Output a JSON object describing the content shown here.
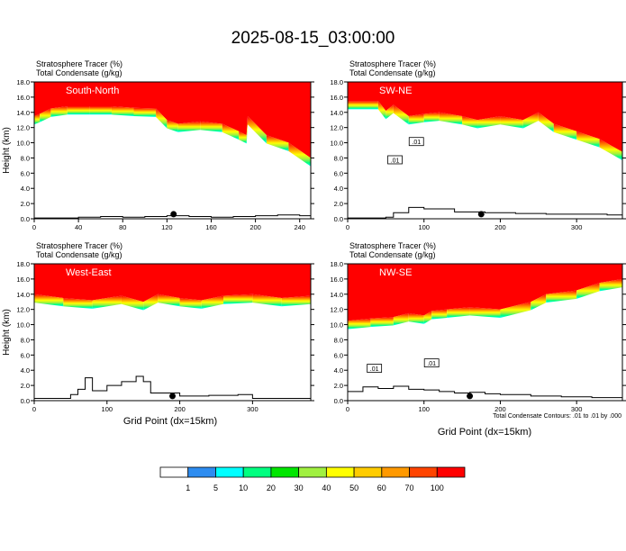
{
  "title": "2025-08-15_03:00:00",
  "xlabel": "Grid Point (dx=15km)",
  "footnote": "Total Condensate Contours: .01 to .01 by .000",
  "colorbar": {
    "labels": [
      "1",
      "5",
      "10",
      "20",
      "30",
      "40",
      "50",
      "60",
      "70",
      "100"
    ],
    "colors": [
      "#ffffff",
      "#2d8cf0",
      "#00ffff",
      "#00ff80",
      "#00e600",
      "#a0f040",
      "#ffff00",
      "#ffcc00",
      "#ff9900",
      "#ff4400",
      "#ff0000"
    ]
  },
  "chart_data": [
    {
      "type": "heatmap",
      "panel_label": "South-North",
      "header": [
        "Stratosphere Tracer   (%)",
        "Total Condensate   (g/kg)"
      ],
      "ylabel": "Height (km)",
      "xlim": [
        0,
        250
      ],
      "ylim": [
        0,
        18
      ],
      "xticks": [
        0,
        40,
        80,
        120,
        160,
        200,
        240
      ],
      "yticks": [
        "0.0",
        "2.0",
        "4.0",
        "6.0",
        "8.0",
        "10.0",
        "12.0",
        "14.0",
        "16.0",
        "18.0"
      ],
      "tropopause": {
        "x": [
          0,
          5,
          15,
          30,
          50,
          70,
          90,
          110,
          120,
          130,
          150,
          170,
          185,
          192,
          193,
          210,
          230,
          250
        ],
        "y": [
          13.5,
          13.8,
          14.5,
          14.8,
          14.8,
          14.8,
          14.6,
          14.5,
          13.0,
          12.5,
          12.8,
          12.5,
          11.5,
          11.0,
          13.5,
          11.0,
          10.0,
          8.0
        ]
      },
      "terrain": {
        "x": [
          0,
          20,
          40,
          60,
          80,
          100,
          120,
          140,
          160,
          180,
          200,
          220,
          240,
          250
        ],
        "y": [
          0.1,
          0.1,
          0.2,
          0.3,
          0.2,
          0.3,
          0.4,
          0.3,
          0.2,
          0.3,
          0.4,
          0.5,
          0.4,
          0.3
        ]
      },
      "marker_x": 126,
      "contour_labels": []
    },
    {
      "type": "heatmap",
      "panel_label": "SW-NE",
      "header": [
        "Stratosphere Tracer   (%)",
        "Total Condensate   (g/kg)"
      ],
      "ylabel": "",
      "xlim": [
        0,
        360
      ],
      "ylim": [
        0,
        18
      ],
      "xticks": [
        0,
        100,
        200,
        300
      ],
      "yticks": [
        "0.0",
        "2.0",
        "4.0",
        "6.0",
        "8.0",
        "10.0",
        "12.0",
        "14.0",
        "16.0",
        "18.0"
      ],
      "tropopause": {
        "x": [
          0,
          40,
          50,
          60,
          80,
          100,
          120,
          150,
          170,
          200,
          230,
          250,
          270,
          300,
          330,
          360
        ],
        "y": [
          15.5,
          15.5,
          14.2,
          15.0,
          13.5,
          13.8,
          14.0,
          13.5,
          13.0,
          13.5,
          13.0,
          14.0,
          12.5,
          11.5,
          10.5,
          8.8
        ]
      },
      "terrain": {
        "x": [
          0,
          30,
          50,
          60,
          80,
          100,
          140,
          180,
          220,
          260,
          300,
          340,
          360
        ],
        "y": [
          0.1,
          0.1,
          0.2,
          0.8,
          1.5,
          1.3,
          0.9,
          0.8,
          0.7,
          0.6,
          0.6,
          0.5,
          0.5
        ]
      },
      "marker_x": 175,
      "contour_labels": [
        {
          "x": 62,
          "y": 7.7,
          "text": ".01"
        },
        {
          "x": 90,
          "y": 10.1,
          "text": ".01"
        }
      ]
    },
    {
      "type": "heatmap",
      "panel_label": "West-East",
      "header": [
        "Stratosphere Tracer   (%)",
        "Total Condensate   (g/kg)"
      ],
      "ylabel": "Height (km)",
      "xlim": [
        0,
        380
      ],
      "ylim": [
        0,
        18
      ],
      "xticks": [
        0,
        100,
        200,
        300
      ],
      "yticks": [
        "0.0",
        "2.0",
        "4.0",
        "6.0",
        "8.0",
        "10.0",
        "12.0",
        "14.0",
        "16.0",
        "18.0"
      ],
      "tropopause": {
        "x": [
          0,
          40,
          80,
          120,
          150,
          170,
          200,
          230,
          260,
          300,
          340,
          380
        ],
        "y": [
          14.0,
          13.5,
          13.2,
          13.8,
          13.0,
          14.0,
          13.5,
          13.2,
          13.8,
          14.0,
          13.5,
          13.8
        ]
      },
      "terrain": {
        "x": [
          0,
          20,
          50,
          60,
          70,
          80,
          100,
          120,
          140,
          150,
          160,
          200,
          240,
          280,
          300,
          380
        ],
        "y": [
          0.3,
          0.3,
          0.8,
          1.5,
          3.0,
          1.3,
          2.0,
          2.5,
          3.2,
          2.5,
          1.0,
          0.6,
          0.7,
          0.8,
          0.3,
          0.3
        ]
      },
      "marker_x": 190,
      "contour_labels": []
    },
    {
      "type": "heatmap",
      "panel_label": "NW-SE",
      "header": [
        "Stratosphere Tracer   (%)",
        "Total Condensate   (g/kg)"
      ],
      "ylabel": "",
      "xlim": [
        0,
        360
      ],
      "ylim": [
        0,
        18
      ],
      "xticks": [
        0,
        100,
        200,
        300
      ],
      "yticks": [
        "0.0",
        "2.0",
        "4.0",
        "6.0",
        "8.0",
        "10.0",
        "12.0",
        "14.0",
        "16.0",
        "18.0"
      ],
      "tropopause": {
        "x": [
          0,
          30,
          60,
          80,
          100,
          110,
          130,
          160,
          200,
          240,
          260,
          300,
          330,
          360
        ],
        "y": [
          10.5,
          10.8,
          11.0,
          11.5,
          11.2,
          11.8,
          12.0,
          12.3,
          12.0,
          13.0,
          14.0,
          14.5,
          15.5,
          16.0
        ]
      },
      "terrain": {
        "x": [
          0,
          20,
          40,
          60,
          80,
          100,
          120,
          140,
          160,
          180,
          200,
          240,
          280,
          320,
          360
        ],
        "y": [
          1.2,
          1.8,
          1.6,
          1.9,
          1.5,
          1.4,
          1.2,
          1.0,
          1.1,
          0.9,
          0.8,
          0.6,
          0.5,
          0.4,
          0.3
        ]
      },
      "marker_x": 160,
      "contour_labels": [
        {
          "x": 35,
          "y": 4.2,
          "text": ".01"
        },
        {
          "x": 110,
          "y": 4.9,
          "text": ".01"
        }
      ]
    }
  ]
}
